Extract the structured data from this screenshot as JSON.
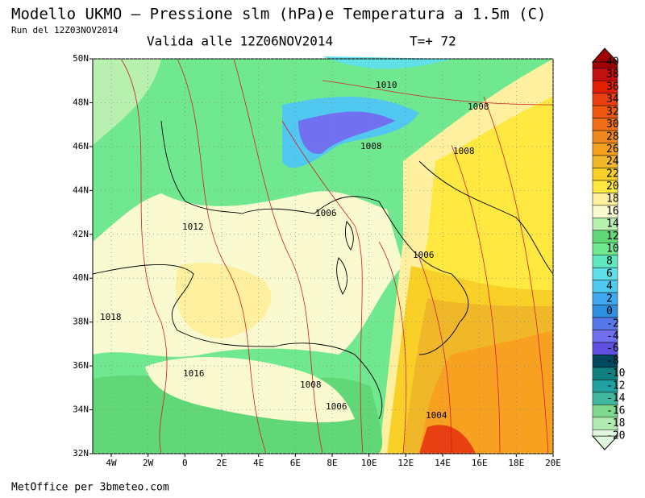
{
  "header": {
    "title": "Modello UKMO — Pressione slm (hPa)e Temperatura a 1.5m (C)",
    "run": "Run del 12Z03NOV2014",
    "valid": "Valida alle 12Z06NOV2014",
    "step": "T=+ 72"
  },
  "map": {
    "lon_ticks": [
      "4W",
      "2W",
      "0",
      "2E",
      "4E",
      "6E",
      "8E",
      "10E",
      "12E",
      "14E",
      "16E",
      "18E",
      "20E"
    ],
    "lat_ticks": [
      "50N",
      "48N",
      "46N",
      "44N",
      "42N",
      "40N",
      "38N",
      "36N",
      "34N",
      "32N"
    ],
    "isobar_labels": [
      "1010",
      "1008",
      "1008",
      "1008",
      "1006",
      "1012",
      "1006",
      "1018",
      "1016",
      "1008",
      "1006",
      "1004"
    ]
  },
  "legend": {
    "items": [
      {
        "label": "40",
        "color": "#a00000"
      },
      {
        "label": "38",
        "color": "#c01010"
      },
      {
        "label": "36",
        "color": "#e02000"
      },
      {
        "label": "34",
        "color": "#e84010"
      },
      {
        "label": "32",
        "color": "#f05810"
      },
      {
        "label": "30",
        "color": "#f07018"
      },
      {
        "label": "28",
        "color": "#f08820"
      },
      {
        "label": "26",
        "color": "#f8a020"
      },
      {
        "label": "24",
        "color": "#f0b828"
      },
      {
        "label": "22",
        "color": "#f8d028"
      },
      {
        "label": "20",
        "color": "#ffe840"
      },
      {
        "label": "18",
        "color": "#fff0a0"
      },
      {
        "label": "16",
        "color": "#fafad0"
      },
      {
        "label": "14",
        "color": "#b8f0b0"
      },
      {
        "label": "12",
        "color": "#60d878"
      },
      {
        "label": "10",
        "color": "#70e890"
      },
      {
        "label": "8",
        "color": "#60e8c0"
      },
      {
        "label": "6",
        "color": "#60e0e8"
      },
      {
        "label": "4",
        "color": "#50c8f0"
      },
      {
        "label": "2",
        "color": "#40a8f0"
      },
      {
        "label": "0",
        "color": "#3090e0"
      },
      {
        "label": "-2",
        "color": "#5878e8"
      },
      {
        "label": "-4",
        "color": "#7070f0"
      },
      {
        "label": "-6",
        "color": "#6050e0"
      },
      {
        "label": "-8",
        "color": "#004860"
      },
      {
        "label": "-10",
        "color": "#108080"
      },
      {
        "label": "-12",
        "color": "#20a0a0"
      },
      {
        "label": "-14",
        "color": "#40b8a0"
      },
      {
        "label": "-16",
        "color": "#80d890"
      },
      {
        "label": "-18",
        "color": "#b0eab0"
      },
      {
        "label": "-20",
        "color": "#e0f8e0"
      }
    ]
  },
  "footer": "MetOffice per 3bmeteo.com"
}
